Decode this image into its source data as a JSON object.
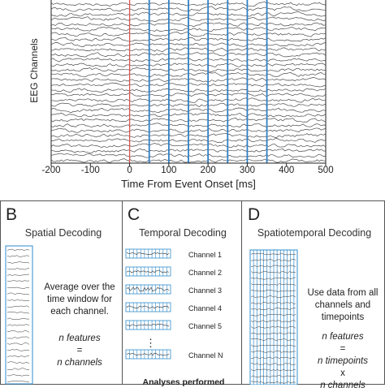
{
  "panel_a": {
    "ylabel": "EEG Channels",
    "xlabel": "Time From Event Onset [ms]",
    "xticks": [
      "-200",
      "-100",
      "0",
      "100",
      "200",
      "300",
      "400",
      "500"
    ],
    "xlim": [
      -200,
      500
    ],
    "event_onset_ms": 0,
    "window_bounds_ms": [
      50,
      100,
      150,
      200,
      250,
      300,
      350
    ],
    "trace_count": 32,
    "colors": {
      "trace": "#4a4a4a",
      "onset": "#d9534f",
      "window": "#2f7fc4"
    }
  },
  "panel_b": {
    "letter": "B",
    "title": "Spatial Decoding",
    "desc": [
      "Average over the",
      "time window for",
      "each channel."
    ],
    "feat": [
      "n features",
      "=",
      "n channels"
    ]
  },
  "panel_c": {
    "letter": "C",
    "title": "Temporal Decoding",
    "channels": [
      "Channel 1",
      "Channel 2",
      "Channel 3",
      "Channel 4",
      "Channel 5",
      "Channel N"
    ],
    "ellipsis": "⋮",
    "footer": "Analyses performed"
  },
  "panel_d": {
    "letter": "D",
    "title": "Spatiotemporal Decoding",
    "desc": [
      "Use data from all",
      "channels and",
      "timepoints"
    ],
    "feat": [
      "n features",
      "=",
      "n timepoints",
      "x",
      "n channels"
    ]
  }
}
